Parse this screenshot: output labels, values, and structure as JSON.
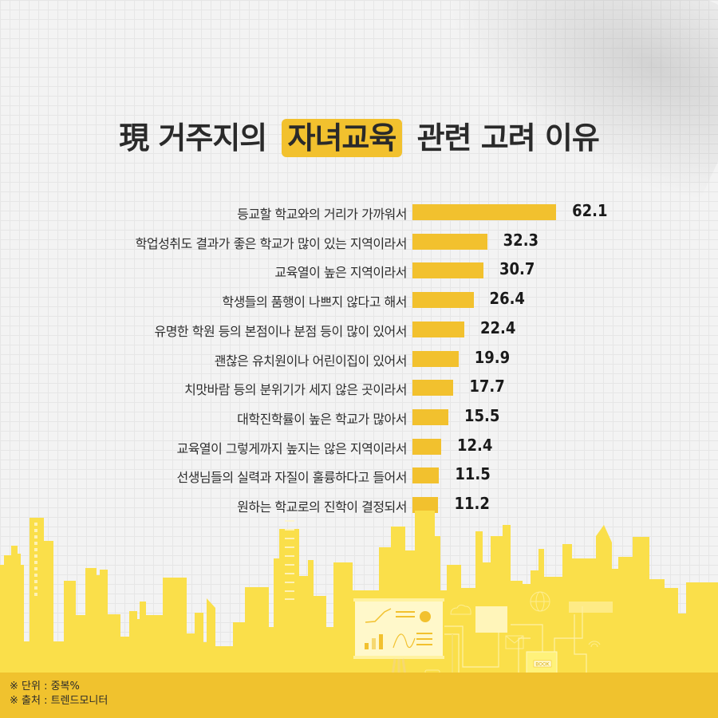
{
  "header": {
    "title_prefix": "現 거주지의",
    "title_highlight": "자녀교육",
    "title_suffix": "관련 고려 이유"
  },
  "colors": {
    "accent": "#f2c12e",
    "skyline": "#fadf4a",
    "footer": "#f0c22e",
    "text": "#2a2a2a",
    "background": "#f3f3f3"
  },
  "chart_data": {
    "type": "bar",
    "orientation": "horizontal",
    "title": "現 거주지의 자녀교육 관련 고려 이유",
    "xlabel": "",
    "ylabel": "",
    "unit": "중복%",
    "categories": [
      "등교할 학교와의 거리가 가까워서",
      "학업성취도 결과가 좋은 학교가 많이 있는 지역이라서",
      "교육열이 높은 지역이라서",
      "학생들의 품행이 나쁘지 않다고 해서",
      "유명한 학원 등의 본점이나 분점 등이 많이 있어서",
      "괜찮은 유치원이나 어린이집이 있어서",
      "치맛바람 등의 분위기가 세지 않은 곳이라서",
      "대학진학률이 높은 학교가 많아서",
      "교육열이 그렇게까지 높지는 않은 지역이라서",
      "선생님들의 실력과 자질이 훌륭하다고 들어서",
      "원하는 학교로의 진학이 결정되서"
    ],
    "values": [
      62.1,
      32.3,
      30.7,
      26.4,
      22.4,
      19.9,
      17.7,
      15.5,
      12.4,
      11.5,
      11.2
    ],
    "value_labels": [
      "62.1",
      "32.3",
      "30.7",
      "26.4",
      "22.4",
      "19.9",
      "17.7",
      "15.5",
      "12.4",
      "11.5",
      "11.2"
    ],
    "grid": false,
    "legend": null
  },
  "footer": {
    "note_unit": "※ 단위 : 중복%",
    "note_source": "※ 출처 : 트렌드모니터"
  },
  "illustration": {
    "book_label": "BOOK"
  }
}
